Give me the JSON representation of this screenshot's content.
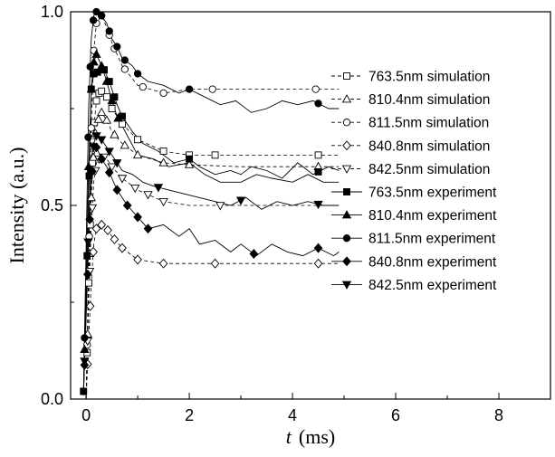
{
  "chart_data": {
    "type": "line",
    "title": "",
    "xlabel_var": "t",
    "xlabel_unit": "(ms)",
    "ylabel": "Intensity (a.u.)",
    "xlim": [
      -0.3,
      9
    ],
    "ylim": [
      0,
      1
    ],
    "x_ticks": [
      0,
      2,
      4,
      6,
      8
    ],
    "x_tick_labels": [
      "0",
      "2",
      "4",
      "6",
      "8"
    ],
    "y_ticks": [
      0,
      0.5,
      1
    ],
    "y_tick_labels": [
      "0.0",
      "0.5",
      "1.0"
    ],
    "grid": false,
    "legend_position": "right",
    "series": [
      {
        "name": "763.5nm simulation",
        "style": "dashed",
        "marker": "square-open",
        "x": [
          0,
          0.05,
          0.1,
          0.15,
          0.2,
          0.25,
          0.3,
          0.4,
          0.5,
          0.7,
          1.0,
          1.5,
          2.0,
          2.5,
          3.0,
          4.5,
          4.9
        ],
        "y": [
          0,
          0.3,
          0.55,
          0.7,
          0.77,
          0.79,
          0.795,
          0.78,
          0.75,
          0.71,
          0.67,
          0.64,
          0.63,
          0.63,
          0.63,
          0.63,
          0.63
        ],
        "marker_x": [
          0.02,
          0.05,
          0.08,
          0.12,
          0.16,
          0.2,
          0.25,
          0.3,
          0.4,
          0.5,
          0.7,
          1.0,
          1.5,
          2.0,
          2.5,
          4.5
        ]
      },
      {
        "name": "810.4nm simulation",
        "style": "dashed",
        "marker": "triangle-up-open",
        "x": [
          0,
          0.05,
          0.1,
          0.15,
          0.2,
          0.3,
          0.4,
          0.5,
          0.7,
          1.0,
          1.5,
          2.0,
          3.0,
          4.5,
          4.9
        ],
        "y": [
          0,
          0.28,
          0.52,
          0.65,
          0.71,
          0.74,
          0.72,
          0.69,
          0.66,
          0.63,
          0.61,
          0.605,
          0.6,
          0.6,
          0.6
        ],
        "marker_x": [
          0.03,
          0.07,
          0.1,
          0.14,
          0.18,
          0.24,
          0.3,
          0.4,
          0.55,
          0.75,
          1.0,
          1.5,
          2.0,
          4.5
        ]
      },
      {
        "name": "811.5nm simulation",
        "style": "dashed",
        "marker": "circle-open",
        "x": [
          0,
          0.05,
          0.1,
          0.15,
          0.2,
          0.3,
          0.4,
          0.5,
          0.7,
          1.0,
          1.5,
          2.0,
          3.0,
          4.5,
          4.9
        ],
        "y": [
          0,
          0.35,
          0.7,
          0.9,
          0.97,
          0.99,
          0.96,
          0.92,
          0.86,
          0.81,
          0.79,
          0.8,
          0.8,
          0.8,
          0.8
        ],
        "marker_x": [
          0.02,
          0.06,
          0.1,
          0.15,
          0.2,
          0.3,
          0.45,
          0.55,
          0.75,
          1.1,
          1.5,
          2.45,
          4.45
        ]
      },
      {
        "name": "840.8nm simulation",
        "style": "dashed",
        "marker": "diamond-open",
        "x": [
          0,
          0.05,
          0.1,
          0.15,
          0.2,
          0.3,
          0.4,
          0.5,
          0.7,
          1.0,
          1.5,
          2.0,
          3.0,
          4.5,
          4.9
        ],
        "y": [
          0,
          0.15,
          0.3,
          0.4,
          0.44,
          0.45,
          0.44,
          0.42,
          0.39,
          0.36,
          0.35,
          0.35,
          0.35,
          0.35,
          0.35
        ],
        "marker_x": [
          0.03,
          0.08,
          0.14,
          0.2,
          0.3,
          0.42,
          0.55,
          0.7,
          1.0,
          1.5,
          2.5,
          4.5
        ]
      },
      {
        "name": "842.5nm simulation",
        "style": "dashed",
        "marker": "triangle-down-open",
        "x": [
          0,
          0.05,
          0.1,
          0.15,
          0.2,
          0.3,
          0.4,
          0.5,
          0.7,
          1.0,
          1.5,
          2.0,
          3.0,
          4.5,
          4.9
        ],
        "y": [
          0,
          0.25,
          0.45,
          0.56,
          0.61,
          0.63,
          0.62,
          0.6,
          0.57,
          0.54,
          0.51,
          0.5,
          0.5,
          0.5,
          0.5
        ],
        "marker_x": [
          0.03,
          0.07,
          0.12,
          0.18,
          0.25,
          0.35,
          0.5,
          0.7,
          0.95,
          1.2,
          1.5,
          2.6
        ]
      },
      {
        "name": "763.5nm experiment",
        "style": "solid",
        "marker": "square-filled",
        "x": [
          -0.05,
          0.05,
          0.1,
          0.15,
          0.2,
          0.3,
          0.35,
          0.45,
          0.5,
          0.6,
          0.7,
          0.9,
          1.1,
          1.4,
          1.7,
          2.0,
          2.2,
          2.5,
          2.8,
          3.0,
          3.2,
          3.5,
          3.8,
          4.1,
          4.4,
          4.7,
          4.9
        ],
        "y": [
          0.02,
          0.52,
          0.8,
          0.84,
          0.84,
          0.86,
          0.85,
          0.82,
          0.8,
          0.76,
          0.73,
          0.69,
          0.66,
          0.64,
          0.61,
          0.62,
          0.6,
          0.58,
          0.59,
          0.58,
          0.6,
          0.59,
          0.57,
          0.61,
          0.58,
          0.6,
          0.59
        ],
        "marker_x": [
          -0.05,
          0.02,
          0.06,
          0.1,
          0.15,
          0.22,
          0.35,
          0.45,
          0.55,
          0.7,
          2.0,
          4.5
        ]
      },
      {
        "name": "810.4nm experiment",
        "style": "solid",
        "marker": "triangle-up-filled",
        "x": [
          -0.05,
          0.05,
          0.1,
          0.15,
          0.2,
          0.3,
          0.4,
          0.5,
          0.6,
          0.8,
          1.0,
          1.3,
          1.6,
          2.0,
          2.3,
          2.6,
          3.0,
          3.3,
          3.6,
          4.0,
          4.3,
          4.6,
          4.9
        ],
        "y": [
          0.01,
          0.6,
          0.8,
          0.87,
          0.89,
          0.86,
          0.82,
          0.77,
          0.73,
          0.68,
          0.63,
          0.62,
          0.6,
          0.61,
          0.58,
          0.56,
          0.56,
          0.58,
          0.57,
          0.56,
          0.58,
          0.56,
          0.56
        ],
        "marker_x": [
          -0.03,
          0.05,
          0.1,
          0.15,
          0.2,
          0.3,
          0.4,
          0.5,
          0.62
        ]
      },
      {
        "name": "811.5nm experiment",
        "style": "solid",
        "marker": "circle-filled",
        "x": [
          -0.05,
          0.05,
          0.1,
          0.15,
          0.2,
          0.3,
          0.4,
          0.5,
          0.6,
          0.7,
          0.9,
          1.0,
          1.2,
          1.5,
          1.8,
          2.0,
          2.3,
          2.6,
          2.9,
          3.2,
          3.5,
          3.8,
          4.1,
          4.4,
          4.7,
          4.9
        ],
        "y": [
          0.01,
          0.75,
          0.93,
          0.99,
          1.0,
          0.99,
          0.97,
          0.93,
          0.91,
          0.88,
          0.86,
          0.84,
          0.82,
          0.81,
          0.79,
          0.8,
          0.78,
          0.76,
          0.77,
          0.74,
          0.75,
          0.77,
          0.76,
          0.77,
          0.75,
          0.75
        ],
        "marker_x": [
          -0.03,
          0.04,
          0.08,
          0.14,
          0.2,
          0.3,
          0.45,
          0.6,
          0.75,
          1.0,
          2.0,
          4.5
        ]
      },
      {
        "name": "840.8nm experiment",
        "style": "solid",
        "marker": "diamond-filled",
        "x": [
          -0.05,
          0.05,
          0.1,
          0.15,
          0.2,
          0.3,
          0.4,
          0.5,
          0.6,
          0.8,
          1.0,
          1.2,
          1.5,
          1.8,
          2.0,
          2.2,
          2.5,
          2.8,
          3.0,
          3.3,
          3.6,
          3.9,
          4.2,
          4.5,
          4.8,
          4.9
        ],
        "y": [
          0.01,
          0.4,
          0.56,
          0.63,
          0.65,
          0.62,
          0.6,
          0.57,
          0.54,
          0.5,
          0.47,
          0.44,
          0.45,
          0.42,
          0.44,
          0.4,
          0.41,
          0.38,
          0.4,
          0.37,
          0.4,
          0.38,
          0.37,
          0.39,
          0.37,
          0.38
        ],
        "marker_x": [
          -0.03,
          0.03,
          0.07,
          0.12,
          0.2,
          0.3,
          0.45,
          0.6,
          0.8,
          1.0,
          1.2,
          3.25,
          4.5
        ]
      },
      {
        "name": "842.5nm experiment",
        "style": "solid",
        "marker": "triangle-down-filled",
        "x": [
          -0.05,
          0.05,
          0.1,
          0.15,
          0.2,
          0.3,
          0.4,
          0.5,
          0.6,
          0.7,
          0.9,
          1.1,
          1.3,
          1.6,
          1.9,
          2.2,
          2.5,
          2.8,
          3.1,
          3.4,
          3.7,
          4.0,
          4.3,
          4.6,
          4.9
        ],
        "y": [
          0.01,
          0.45,
          0.62,
          0.66,
          0.68,
          0.67,
          0.65,
          0.63,
          0.61,
          0.59,
          0.58,
          0.56,
          0.55,
          0.54,
          0.53,
          0.52,
          0.51,
          0.5,
          0.52,
          0.49,
          0.51,
          0.5,
          0.51,
          0.5,
          0.5
        ],
        "marker_x": [
          -0.03,
          0.04,
          0.09,
          0.14,
          0.2,
          0.3,
          0.45,
          0.6,
          1.4,
          3.0,
          4.5
        ]
      }
    ]
  }
}
